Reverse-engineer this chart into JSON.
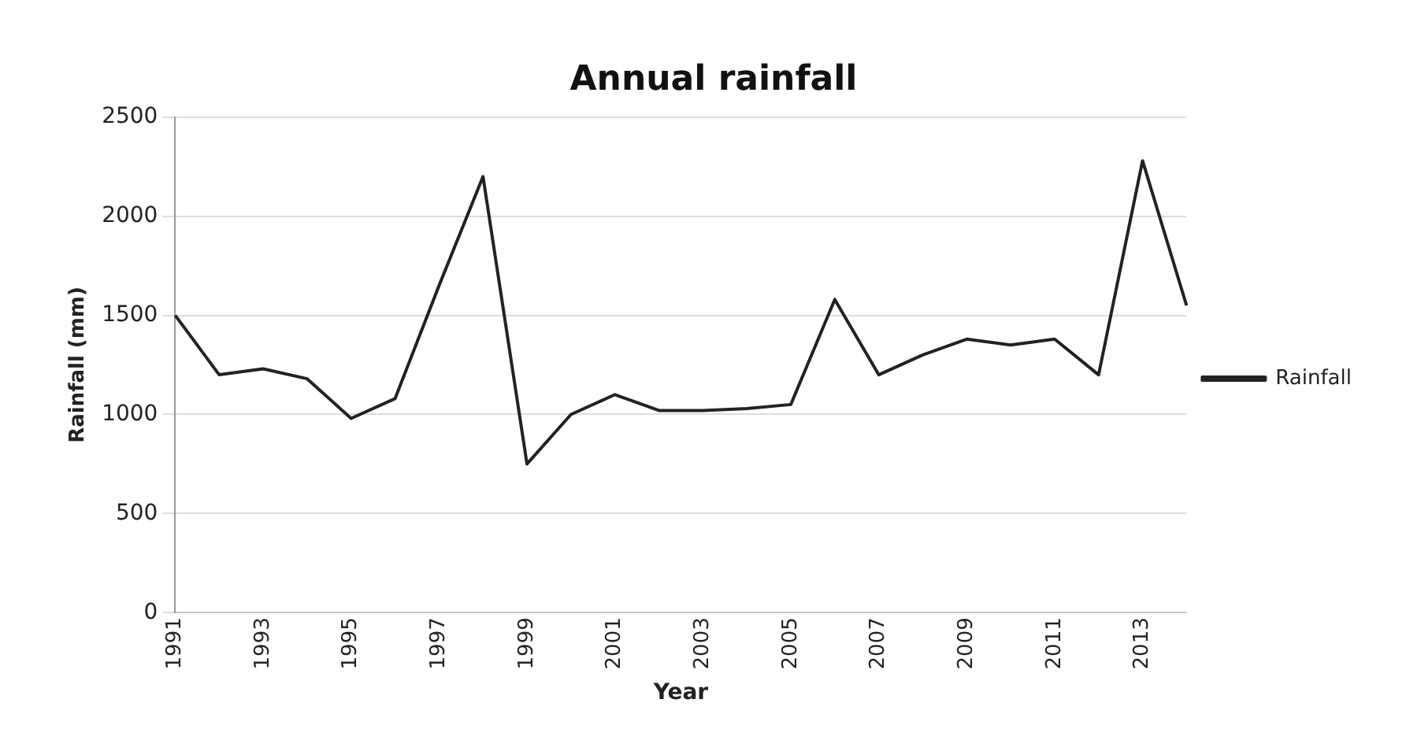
{
  "chart_data": {
    "type": "line",
    "title": "Annual rainfall",
    "xlabel": "Year",
    "ylabel": "Rainfall (mm)",
    "categories": [
      "1991",
      null,
      "1993",
      null,
      "1995",
      null,
      "1997",
      null,
      "1999",
      null,
      "2001",
      null,
      "2003",
      null,
      "2005",
      null,
      "2007",
      null,
      "2009",
      null,
      "2011",
      null,
      "2013",
      null
    ],
    "series": [
      {
        "name": "Rainfall",
        "color": "#222222",
        "values": [
          1500,
          1200,
          1230,
          1180,
          980,
          1080,
          1650,
          2200,
          750,
          1000,
          1100,
          1020,
          1020,
          1030,
          1050,
          1580,
          1200,
          1300,
          1380,
          1350,
          1380,
          1200,
          2280,
          1550
        ]
      }
    ],
    "ylim": [
      0,
      2500
    ],
    "yticks": [
      0,
      500,
      1000,
      1500,
      2000,
      2500
    ],
    "grid": "y",
    "legend": "right",
    "marker": "none"
  }
}
